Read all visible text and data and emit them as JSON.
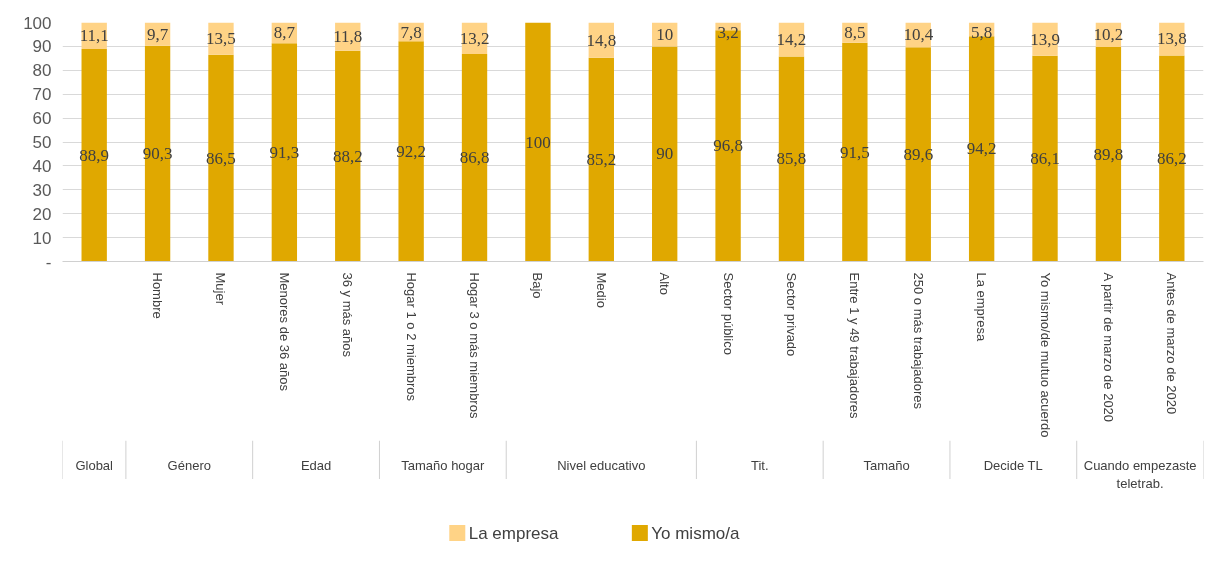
{
  "chart_data": {
    "type": "bar",
    "stacked": true,
    "categories": [
      null,
      "Hombre",
      "Mujer",
      "Menores de 36 años",
      "36 y más años",
      "Hogar 1 o 2 miembros",
      "Hogar 3 o más miembros",
      "Bajo",
      "Medio",
      "Alto",
      "Sector público",
      "Sector privado",
      "Entre 1 y 49 trabajadores",
      "250 o más trabajadores",
      "La empresa",
      "Yo mismo/de mutuo acuerdo",
      "A partir de marzo de 2020",
      "Antes de marzo de 2020"
    ],
    "series": [
      {
        "name": "Yo mismo/a",
        "color": "#e0a800",
        "values": [
          88.9,
          90.3,
          86.5,
          91.3,
          88.2,
          92.2,
          86.8,
          100,
          85.2,
          90,
          96.8,
          85.8,
          91.5,
          89.6,
          94.2,
          86.1,
          89.8,
          86.2
        ],
        "value_labels": [
          "88,9",
          "90,3",
          "86,5",
          "91,3",
          "88,2",
          "92,2",
          "86,8",
          "100",
          "85,2",
          "90",
          "96,8",
          "85,8",
          "91,5",
          "89,6",
          "94,2",
          "86,1",
          "89,8",
          "86,2"
        ]
      },
      {
        "name": "La empresa",
        "color": "#ffd386",
        "values": [
          11.1,
          9.7,
          13.5,
          8.7,
          11.8,
          7.8,
          13.2,
          0,
          14.8,
          10,
          3.2,
          14.2,
          8.5,
          10.4,
          5.8,
          13.9,
          10.2,
          13.8
        ],
        "value_labels": [
          "11,1",
          "9,7",
          "13,5",
          "8,7",
          "11,8",
          "7,8",
          "13,2",
          null,
          "14,8",
          "10",
          "3,2",
          "14,2",
          "8,5",
          "10,4",
          "5,8",
          "13,9",
          "10,2",
          "13,8"
        ]
      }
    ],
    "annotations": [
      "Global",
      "Género",
      "Edad",
      "Tamaño hogar",
      "Nivel educativo",
      "Tit.",
      "Tamaño",
      "Decide TL",
      "Cuando empezaste teletrab."
    ],
    "ylim": [
      0,
      100
    ],
    "yticks": [
      {
        "value": 0,
        "label": "-"
      },
      10,
      20,
      30,
      40,
      50,
      60,
      70,
      80,
      90,
      100
    ],
    "grid": "y",
    "legend": "bottom"
  }
}
